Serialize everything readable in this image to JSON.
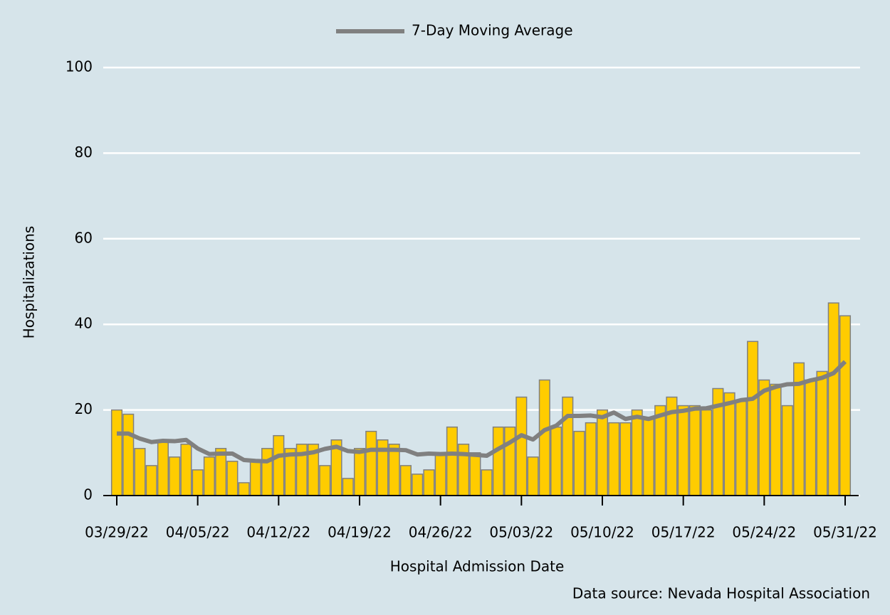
{
  "chart_data": {
    "type": "bar",
    "legend": {
      "label": "7-Day Moving Average",
      "position": "top"
    },
    "xlabel": "Hospital Admission Date",
    "ylabel": "Hospitalizations",
    "source": "Data source: Nevada Hospital Association",
    "x": [
      "03/29/22",
      "03/30/22",
      "03/31/22",
      "04/01/22",
      "04/02/22",
      "04/03/22",
      "04/04/22",
      "04/05/22",
      "04/06/22",
      "04/07/22",
      "04/08/22",
      "04/09/22",
      "04/10/22",
      "04/11/22",
      "04/12/22",
      "04/13/22",
      "04/14/22",
      "04/15/22",
      "04/16/22",
      "04/17/22",
      "04/18/22",
      "04/19/22",
      "04/20/22",
      "04/21/22",
      "04/22/22",
      "04/23/22",
      "04/24/22",
      "04/25/22",
      "04/26/22",
      "04/27/22",
      "04/28/22",
      "04/29/22",
      "04/30/22",
      "05/01/22",
      "05/02/22",
      "05/03/22",
      "05/04/22",
      "05/05/22",
      "05/06/22",
      "05/07/22",
      "05/08/22",
      "05/09/22",
      "05/10/22",
      "05/11/22",
      "05/12/22",
      "05/13/22",
      "05/14/22",
      "05/15/22",
      "05/16/22",
      "05/17/22",
      "05/18/22",
      "05/19/22",
      "05/20/22",
      "05/21/22",
      "05/22/22",
      "05/23/22",
      "05/24/22",
      "05/25/22",
      "05/26/22",
      "05/27/22",
      "05/28/22",
      "05/29/22",
      "05/30/22",
      "05/31/22"
    ],
    "series": [
      {
        "name": "Hospitalizations",
        "type": "bar",
        "color": "#ffcc00",
        "values": [
          20,
          19,
          11,
          7,
          13,
          9,
          12,
          6,
          9,
          11,
          8,
          3,
          8,
          11,
          14,
          11,
          12,
          12,
          7,
          13,
          4,
          11,
          15,
          13,
          12,
          7,
          5,
          6,
          10,
          16,
          12,
          10,
          6,
          16,
          16,
          23,
          9,
          27,
          16,
          23,
          15,
          17,
          20,
          17,
          17,
          20,
          18,
          21,
          23,
          21,
          21,
          20,
          25,
          24,
          22,
          36,
          27,
          26,
          21,
          31,
          27,
          29,
          45,
          42
        ]
      },
      {
        "name": "7-Day Moving Average",
        "type": "line",
        "color": "#808080",
        "values": [
          14.5,
          14.5,
          13.3,
          12.5,
          12.8,
          12.7,
          13,
          11,
          9.7,
          9.8,
          9.8,
          8.3,
          8.1,
          8,
          9.3,
          9.6,
          9.7,
          10.1,
          10.9,
          11.4,
          10.4,
          10.2,
          10.7,
          10.7,
          10.7,
          10.6,
          9.6,
          9.8,
          9.7,
          9.8,
          9.7,
          9.5,
          9.3,
          10.9,
          12.4,
          14.1,
          13.1,
          15.3,
          16.3,
          18.6,
          18.6,
          18.7,
          18.3,
          19.4,
          17.9,
          18.4,
          17.9,
          18.7,
          19.5,
          19.8,
          20.3,
          20.4,
          21,
          21.6,
          22.3,
          22.6,
          24.5,
          25.4,
          26,
          26.1,
          26.9,
          27.5,
          28.6,
          31.3
        ]
      }
    ],
    "xticks": [
      "03/29/22",
      "04/05/22",
      "04/12/22",
      "04/19/22",
      "04/26/22",
      "05/03/22",
      "05/10/22",
      "05/17/22",
      "05/24/22",
      "05/31/22"
    ],
    "ylim": [
      0,
      100
    ],
    "yticks": [
      0,
      20,
      40,
      60,
      80,
      100
    ],
    "grid": true
  }
}
